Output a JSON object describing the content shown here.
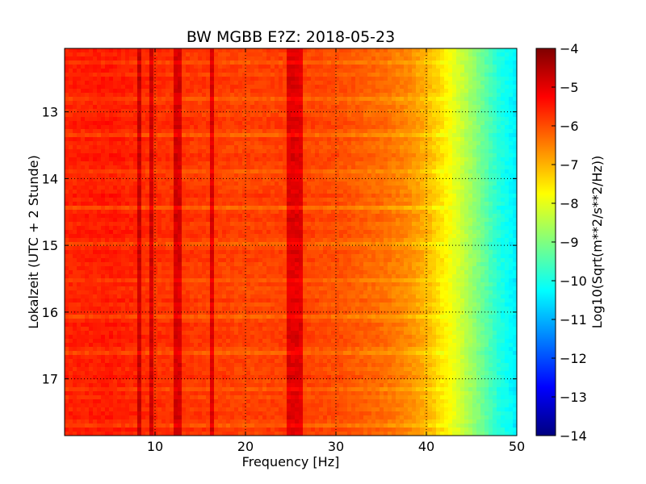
{
  "chart_data": {
    "type": "heatmap",
    "title": "BW MGBB E?Z: 2018-05-23",
    "xlabel": "Frequency [Hz]",
    "ylabel": "Lokalzeit (UTC + 2 Stunde)",
    "xlim": [
      0,
      50
    ],
    "ylim": [
      17.85,
      12.05
    ],
    "x_ticks": [
      10,
      20,
      30,
      40,
      50
    ],
    "x_tick_labels": [
      "10",
      "20",
      "30",
      "40",
      "50"
    ],
    "y_ticks": [
      13,
      14,
      15,
      16,
      17
    ],
    "y_tick_labels": [
      "13",
      "14",
      "15",
      "16",
      "17"
    ],
    "grid": true,
    "colormap": "jet",
    "colorbar": {
      "label": "Log10(Sqrt(m**2/s**2/Hz))",
      "range": [
        -14,
        -4
      ],
      "ticks": [
        -4,
        -5,
        -6,
        -7,
        -8,
        -9,
        -10,
        -11,
        -12,
        -13,
        -14
      ],
      "tick_labels": [
        "−4",
        "−5",
        "−6",
        "−7",
        "−8",
        "−9",
        "−10",
        "−11",
        "−12",
        "−13",
        "−14"
      ]
    },
    "spectral_profile": {
      "frequency_hz": [
        0,
        5,
        10,
        15,
        20,
        25,
        30,
        35,
        38,
        40,
        42,
        44,
        46,
        48,
        50
      ],
      "level": [
        -5.6,
        -5.5,
        -5.7,
        -5.8,
        -5.9,
        -5.85,
        -6.0,
        -6.3,
        -6.6,
        -7.0,
        -7.6,
        -8.3,
        -9.1,
        -9.9,
        -10.4
      ]
    },
    "persistent_lines_hz": [
      8.2,
      9.6,
      12.5,
      16.3,
      25.1,
      26.0
    ]
  }
}
